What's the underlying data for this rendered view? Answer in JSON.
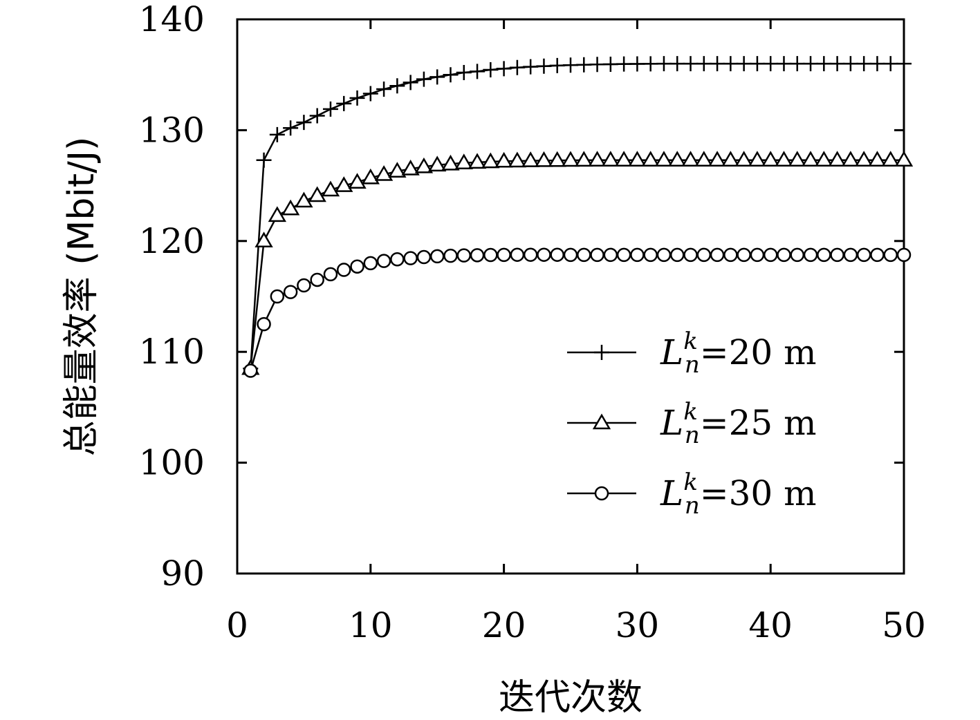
{
  "chart_data": {
    "type": "line",
    "title": "",
    "xlabel": "迭代次数",
    "ylabel": "总能量效率 (Mbit/J)",
    "xlim": [
      0,
      50
    ],
    "ylim": [
      90,
      140
    ],
    "xticks": [
      0,
      10,
      20,
      30,
      40,
      50
    ],
    "yticks": [
      90,
      100,
      110,
      120,
      130,
      140
    ],
    "grid": false,
    "legend_position": "lower-right",
    "legend_prefix": "L",
    "legend_sup": "k",
    "legend_sub": "n",
    "series": [
      {
        "name": "=20 m",
        "marker": "plus",
        "x": [
          1,
          2,
          3,
          4,
          5,
          6,
          7,
          8,
          9,
          10,
          11,
          12,
          13,
          14,
          15,
          16,
          17,
          18,
          19,
          20,
          21,
          22,
          23,
          24,
          25,
          26,
          27,
          28,
          29,
          30,
          31,
          32,
          33,
          34,
          35,
          36,
          37,
          38,
          39,
          40,
          41,
          42,
          43,
          44,
          45,
          46,
          47,
          48,
          49,
          50
        ],
        "y": [
          108.5,
          127.3,
          129.6,
          130.2,
          130.7,
          131.3,
          131.9,
          132.4,
          132.9,
          133.3,
          133.7,
          134.0,
          134.3,
          134.6,
          134.8,
          135.0,
          135.2,
          135.3,
          135.45,
          135.55,
          135.65,
          135.72,
          135.78,
          135.83,
          135.87,
          135.9,
          135.93,
          135.95,
          135.97,
          135.98,
          135.99,
          136.0,
          136.0,
          136.0,
          136.0,
          136.0,
          136.0,
          136.0,
          136.0,
          136.0,
          136.0,
          136.0,
          136.0,
          136.0,
          136.0,
          136.0,
          136.0,
          136.0,
          136.0,
          136.0
        ]
      },
      {
        "name": "=25 m",
        "marker": "triangle",
        "x": [
          1,
          2,
          3,
          4,
          5,
          6,
          7,
          8,
          9,
          10,
          11,
          12,
          13,
          14,
          15,
          16,
          17,
          18,
          19,
          20,
          21,
          22,
          23,
          24,
          25,
          26,
          27,
          28,
          29,
          30,
          31,
          32,
          33,
          34,
          35,
          36,
          37,
          38,
          39,
          40,
          41,
          42,
          43,
          44,
          45,
          46,
          47,
          48,
          49,
          50
        ],
        "y": [
          108.5,
          120.0,
          122.3,
          122.9,
          123.6,
          124.1,
          124.6,
          125.0,
          125.3,
          125.7,
          126.0,
          126.3,
          126.5,
          126.7,
          126.85,
          126.95,
          127.05,
          127.1,
          127.15,
          127.2,
          127.22,
          127.24,
          127.26,
          127.27,
          127.28,
          127.29,
          127.3,
          127.3,
          127.3,
          127.3,
          127.3,
          127.3,
          127.3,
          127.3,
          127.3,
          127.3,
          127.3,
          127.3,
          127.3,
          127.3,
          127.3,
          127.3,
          127.3,
          127.3,
          127.3,
          127.3,
          127.3,
          127.3,
          127.3,
          127.3
        ]
      },
      {
        "name": "=30 m",
        "marker": "circle",
        "x": [
          1,
          2,
          3,
          4,
          5,
          6,
          7,
          8,
          9,
          10,
          11,
          12,
          13,
          14,
          15,
          16,
          17,
          18,
          19,
          20,
          21,
          22,
          23,
          24,
          25,
          26,
          27,
          28,
          29,
          30,
          31,
          32,
          33,
          34,
          35,
          36,
          37,
          38,
          39,
          40,
          41,
          42,
          43,
          44,
          45,
          46,
          47,
          48,
          49,
          50
        ],
        "y": [
          108.3,
          112.5,
          115.0,
          115.4,
          116.0,
          116.5,
          117.0,
          117.4,
          117.7,
          118.0,
          118.2,
          118.35,
          118.45,
          118.55,
          118.62,
          118.67,
          118.7,
          118.72,
          118.74,
          118.75,
          118.76,
          118.76,
          118.76,
          118.76,
          118.75,
          118.75,
          118.75,
          118.75,
          118.75,
          118.75,
          118.75,
          118.75,
          118.75,
          118.75,
          118.75,
          118.75,
          118.75,
          118.75,
          118.75,
          118.75,
          118.75,
          118.75,
          118.75,
          118.75,
          118.75,
          118.75,
          118.75,
          118.75,
          118.75,
          118.75
        ]
      }
    ]
  }
}
